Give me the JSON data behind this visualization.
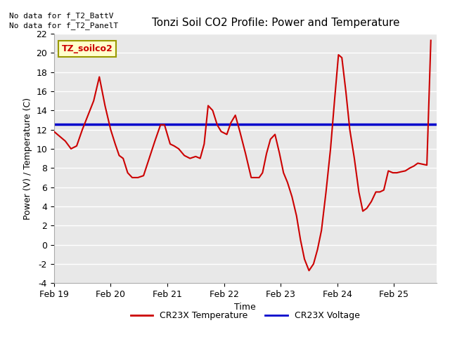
{
  "title": "Tonzi Soil CO2 Profile: Power and Temperature",
  "ylabel": "Power (V) / Temperature (C)",
  "xlabel": "Time",
  "ylim": [
    -4,
    22
  ],
  "yticks": [
    -4,
    -2,
    0,
    2,
    4,
    6,
    8,
    10,
    12,
    14,
    16,
    18,
    20,
    22
  ],
  "no_data_text1": "No data for f_T2_BattV",
  "no_data_text2": "No data for f_T2_PanelT",
  "legend_box_label": "TZ_soilco2",
  "legend_box_color": "#ffffcc",
  "legend_box_border": "#999900",
  "blue_line_y": 12.55,
  "plot_bg_color": "#e8e8e8",
  "red_line_color": "#cc0000",
  "blue_line_color": "#0000cc",
  "temp_x": [
    0.0,
    0.1,
    0.2,
    0.3,
    0.4,
    0.5,
    0.6,
    0.7,
    0.8,
    0.9,
    1.0,
    1.08,
    1.15,
    1.22,
    1.3,
    1.38,
    1.48,
    1.58,
    1.68,
    1.78,
    1.88,
    1.95,
    2.05,
    2.12,
    2.2,
    2.3,
    2.4,
    2.5,
    2.58,
    2.65,
    2.72,
    2.8,
    2.88,
    2.95,
    3.05,
    3.12,
    3.2,
    3.28,
    3.38,
    3.48,
    3.55,
    3.62,
    3.68,
    3.75,
    3.82,
    3.9,
    3.98,
    4.05,
    4.12,
    4.2,
    4.28,
    4.35,
    4.42,
    4.5,
    4.58,
    4.65,
    4.72,
    4.8,
    4.88,
    4.95,
    5.02,
    5.08,
    5.15,
    5.22,
    5.3,
    5.38,
    5.45,
    5.52,
    5.6,
    5.68,
    5.75,
    5.82,
    5.9,
    5.98,
    6.05,
    6.12,
    6.2,
    6.28,
    6.35,
    6.42,
    6.5,
    6.58,
    6.65
  ],
  "temp_y": [
    11.8,
    11.3,
    10.8,
    10.0,
    10.3,
    12.0,
    13.5,
    15.0,
    17.5,
    14.5,
    12.0,
    10.5,
    9.3,
    9.0,
    7.5,
    7.0,
    7.0,
    7.2,
    9.0,
    10.8,
    12.5,
    12.5,
    10.5,
    10.3,
    10.0,
    9.3,
    9.0,
    9.2,
    9.0,
    10.5,
    14.5,
    14.0,
    12.5,
    11.8,
    11.5,
    12.7,
    13.5,
    11.8,
    9.5,
    7.0,
    7.0,
    7.0,
    7.5,
    9.5,
    11.0,
    11.5,
    9.5,
    7.5,
    6.5,
    5.0,
    3.0,
    0.5,
    -1.5,
    -2.7,
    -2.0,
    -0.5,
    1.5,
    5.5,
    10.0,
    15.0,
    19.8,
    19.5,
    16.0,
    12.0,
    9.0,
    5.5,
    3.5,
    3.8,
    4.5,
    5.5,
    5.5,
    5.7,
    7.7,
    7.5,
    7.5,
    7.6,
    7.7,
    8.0,
    8.2,
    8.5,
    8.4,
    8.3,
    21.3
  ],
  "xtick_positions": [
    0,
    1,
    2,
    3,
    4,
    5,
    6
  ],
  "xtick_labels": [
    "Feb 19",
    "Feb 20",
    "Feb 21",
    "Feb 22",
    "Feb 23",
    "Feb 24",
    "Feb 25"
  ],
  "xlim": [
    0,
    6.75
  ],
  "legend_red_label": "CR23X Temperature",
  "legend_blue_label": "CR23X Voltage"
}
